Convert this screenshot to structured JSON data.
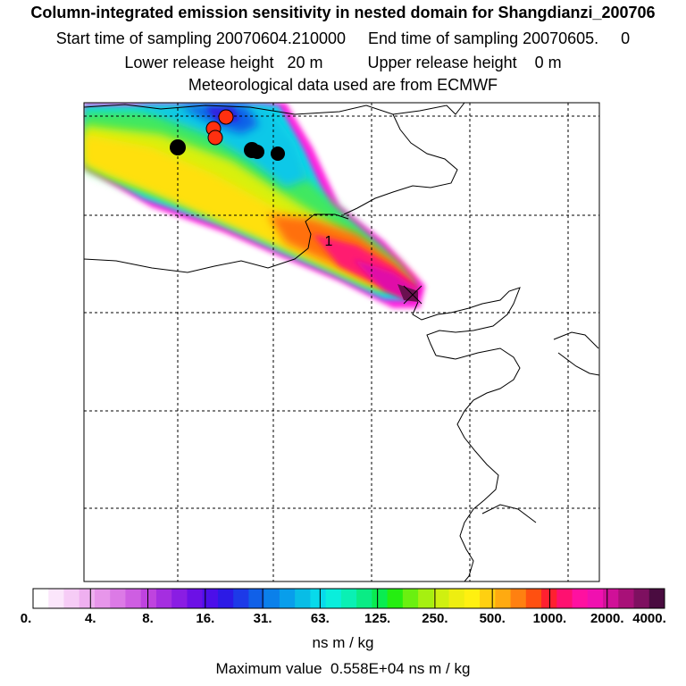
{
  "header": {
    "title": "Column-integrated emission sensitivity in nested domain for Shangdianzi_200706",
    "sampling_line": "Start time of sampling 20070604.210000     End time of sampling 20070605.     0",
    "release_line": "Lower release height   20 m          Upper release height    0 m",
    "met_line": "Meteorological data used are from ECMWF"
  },
  "map": {
    "release_marker_label": "1",
    "black_markers": 4,
    "red_markers": 3,
    "gridline_style": "dashed"
  },
  "colorbar": {
    "labels": [
      "0.",
      "4.",
      "8.",
      "16.",
      "31.",
      "63.",
      "125.",
      "250.",
      "500.",
      "1000.",
      "2000.",
      "4000."
    ],
    "colors": [
      "#ffffff",
      "#fbe6fb",
      "#f6ccf6",
      "#efb0f0",
      "#e796ea",
      "#dc7ae6",
      "#ce5ee2",
      "#bf43df",
      "#a52ee0",
      "#8a1de3",
      "#6c10e6",
      "#4c0fe9",
      "#2c1ae6",
      "#1d3ae8",
      "#1060e8",
      "#0a80ea",
      "#089eeb",
      "#08bde6",
      "#08daeb",
      "#0aeedc",
      "#0af0b4",
      "#0aec85",
      "#0aec50",
      "#25ee10",
      "#6af010",
      "#a6f010",
      "#cff010",
      "#eeee10",
      "#fff010",
      "#ffd010",
      "#ffaa10",
      "#ff8010",
      "#ff5010",
      "#ff2030",
      "#ff1070",
      "#ff10a0",
      "#f010b0",
      "#d01098",
      "#a81078",
      "#7e1060",
      "#4a0c40"
    ]
  },
  "unit_label": "ns m / kg",
  "max_value_line": "Maximum value  0.558E+04 ns m / kg"
}
